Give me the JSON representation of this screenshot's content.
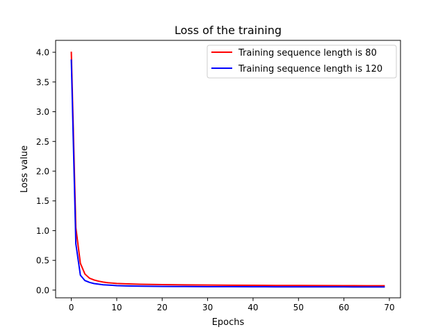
{
  "chart_data": {
    "type": "line",
    "title": "Loss of the training",
    "xlabel": "Epochs",
    "ylabel": "Loss value",
    "xlim": [
      -3.45,
      72.45
    ],
    "ylim": [
      -0.13,
      4.2
    ],
    "xticks": [
      0,
      10,
      20,
      30,
      40,
      50,
      60,
      70
    ],
    "yticks": [
      0.0,
      0.5,
      1.0,
      1.5,
      2.0,
      2.5,
      3.0,
      3.5,
      4.0
    ],
    "xtick_labels": [
      "0",
      "10",
      "20",
      "30",
      "40",
      "50",
      "60",
      "70"
    ],
    "ytick_labels": [
      "0.0",
      "0.5",
      "1.0",
      "1.5",
      "2.0",
      "2.5",
      "3.0",
      "3.5",
      "4.0"
    ],
    "grid": false,
    "legend_position": "top-right",
    "series": [
      {
        "name": "Training sequence length is 80",
        "color": "#ff0000",
        "x": [
          0,
          1,
          2,
          3,
          4,
          5,
          6,
          7,
          8,
          9,
          10,
          12,
          15,
          20,
          25,
          30,
          35,
          40,
          45,
          50,
          55,
          60,
          65,
          69
        ],
        "y": [
          4.01,
          1.05,
          0.45,
          0.27,
          0.2,
          0.17,
          0.15,
          0.135,
          0.125,
          0.118,
          0.112,
          0.105,
          0.098,
          0.092,
          0.088,
          0.085,
          0.082,
          0.08,
          0.078,
          0.077,
          0.076,
          0.075,
          0.074,
          0.073
        ]
      },
      {
        "name": "Training sequence length is 120",
        "color": "#0000ff",
        "x": [
          0,
          1,
          2,
          3,
          4,
          5,
          6,
          7,
          8,
          9,
          10,
          12,
          15,
          20,
          25,
          30,
          35,
          40,
          45,
          50,
          55,
          60,
          65,
          69
        ],
        "y": [
          3.88,
          0.78,
          0.25,
          0.16,
          0.13,
          0.11,
          0.1,
          0.09,
          0.085,
          0.08,
          0.075,
          0.07,
          0.066,
          0.062,
          0.06,
          0.058,
          0.057,
          0.056,
          0.055,
          0.055,
          0.054,
          0.054,
          0.053,
          0.053
        ]
      }
    ]
  }
}
